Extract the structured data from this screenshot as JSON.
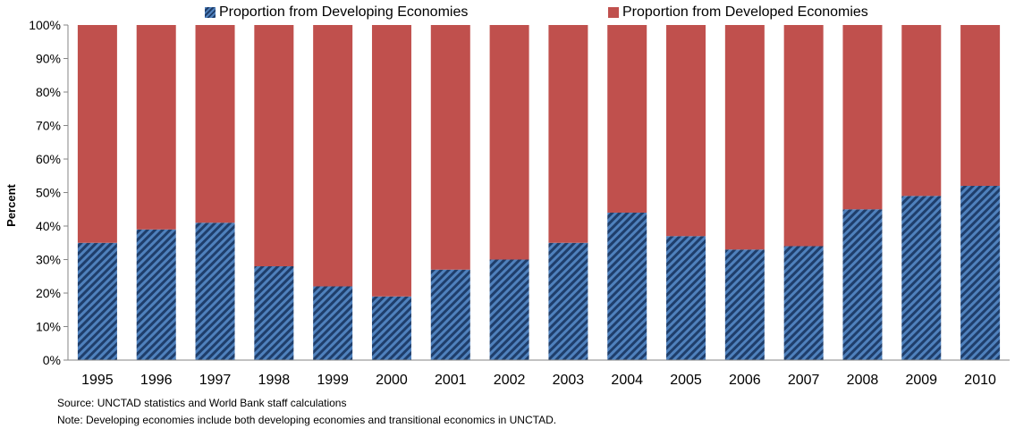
{
  "chart_data": {
    "type": "bar",
    "stacked": true,
    "categories": [
      "1995",
      "1996",
      "1997",
      "1998",
      "1999",
      "2000",
      "2001",
      "2002",
      "2003",
      "2004",
      "2005",
      "2006",
      "2007",
      "2008",
      "2009",
      "2010"
    ],
    "series": [
      {
        "name": "Proportion from Developing Economies",
        "color": "#1f4e79",
        "pattern": "diagonal-hatch",
        "values": [
          35,
          39,
          41,
          28,
          22,
          19,
          27,
          30,
          35,
          44,
          37,
          33,
          34,
          45,
          49,
          52
        ]
      },
      {
        "name": "Proportion from Developed Economies",
        "color": "#c0504d",
        "values": [
          65,
          61,
          59,
          72,
          78,
          81,
          73,
          70,
          65,
          56,
          63,
          67,
          66,
          55,
          51,
          48
        ]
      }
    ],
    "ylabel": "Percent",
    "ylim": [
      0,
      100
    ],
    "yticks": [
      "0%",
      "10%",
      "20%",
      "30%",
      "40%",
      "50%",
      "60%",
      "70%",
      "80%",
      "90%",
      "100%"
    ],
    "grid": false,
    "legend_position": "top"
  },
  "legend": {
    "developing": "Proportion from Developing Economies",
    "developed": "Proportion from Developed Economies"
  },
  "ylabel": "Percent",
  "source": "Source: UNCTAD statistics and World Bank staff calculations",
  "note": "Note: Developing economies include both developing economies and transitional economics in UNCTAD."
}
